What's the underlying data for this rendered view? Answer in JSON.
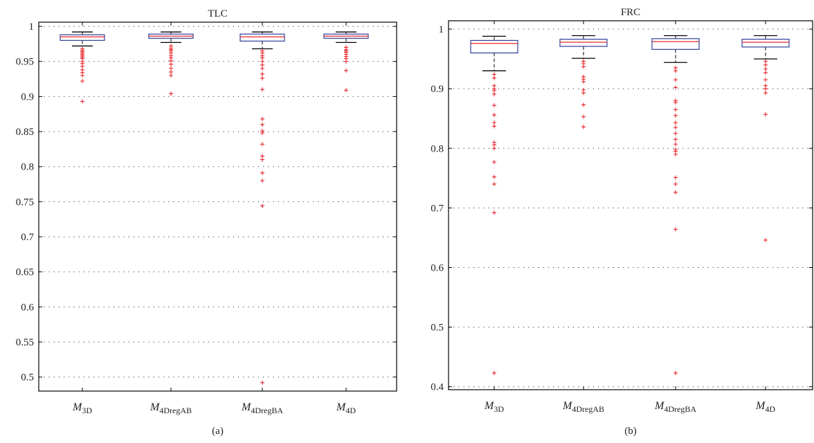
{
  "chart_data": [
    {
      "type": "boxplot",
      "title": "TLC",
      "panel_label": "(a)",
      "categories": [
        {
          "base": "M",
          "sub": "3D"
        },
        {
          "base": "M",
          "sub": "4DregAB"
        },
        {
          "base": "M",
          "sub": "4DregBA"
        },
        {
          "base": "M",
          "sub": "4D"
        }
      ],
      "ylim": [
        0.48,
        1.006
      ],
      "yticks": [
        "0.5",
        "0.55",
        "0.6",
        "0.65",
        "0.7",
        "0.75",
        "0.8",
        "0.85",
        "0.9",
        "0.95",
        "1"
      ],
      "grid": true,
      "boxes": [
        {
          "q1": 0.98,
          "median": 0.985,
          "q3": 0.988,
          "whisker_low": 0.972,
          "whisker_high": 0.992,
          "outliers": [
            0.968,
            0.966,
            0.964,
            0.962,
            0.96,
            0.958,
            0.956,
            0.954,
            0.95,
            0.947,
            0.943,
            0.938,
            0.934,
            0.93,
            0.922,
            0.893
          ]
        },
        {
          "q1": 0.983,
          "median": 0.986,
          "q3": 0.989,
          "whisker_low": 0.977,
          "whisker_high": 0.992,
          "outliers": [
            0.972,
            0.969,
            0.967,
            0.965,
            0.962,
            0.958,
            0.955,
            0.951,
            0.946,
            0.94,
            0.935,
            0.93,
            0.904
          ]
        },
        {
          "q1": 0.979,
          "median": 0.985,
          "q3": 0.989,
          "whisker_low": 0.968,
          "whisker_high": 0.992,
          "outliers": [
            0.965,
            0.962,
            0.958,
            0.955,
            0.95,
            0.945,
            0.94,
            0.932,
            0.926,
            0.91,
            0.868,
            0.86,
            0.851,
            0.848,
            0.832,
            0.815,
            0.81,
            0.791,
            0.78,
            0.744,
            0.492
          ]
        },
        {
          "q1": 0.983,
          "median": 0.986,
          "q3": 0.989,
          "whisker_low": 0.977,
          "whisker_high": 0.992,
          "outliers": [
            0.97,
            0.967,
            0.965,
            0.963,
            0.96,
            0.957,
            0.954,
            0.95,
            0.937,
            0.909
          ]
        }
      ]
    },
    {
      "type": "boxplot",
      "title": "FRC",
      "panel_label": "(b)",
      "categories": [
        {
          "base": "M",
          "sub": "3D"
        },
        {
          "base": "M",
          "sub": "4DregAB"
        },
        {
          "base": "M",
          "sub": "4DregBA"
        },
        {
          "base": "M",
          "sub": "4D"
        }
      ],
      "ylim": [
        0.395,
        1.014
      ],
      "yticks": [
        "0.4",
        "0.5",
        "0.6",
        "0.7",
        "0.8",
        "0.9",
        "1"
      ],
      "grid": true,
      "boxes": [
        {
          "q1": 0.96,
          "median": 0.976,
          "q3": 0.981,
          "whisker_low": 0.93,
          "whisker_high": 0.988,
          "outliers": [
            0.924,
            0.918,
            0.905,
            0.9,
            0.897,
            0.891,
            0.872,
            0.856,
            0.843,
            0.837,
            0.81,
            0.806,
            0.8,
            0.777,
            0.752,
            0.74,
            0.692,
            0.423
          ]
        },
        {
          "q1": 0.971,
          "median": 0.978,
          "q3": 0.983,
          "whisker_low": 0.951,
          "whisker_high": 0.989,
          "outliers": [
            0.946,
            0.942,
            0.937,
            0.92,
            0.916,
            0.912,
            0.898,
            0.893,
            0.873,
            0.853,
            0.836
          ]
        },
        {
          "q1": 0.966,
          "median": 0.979,
          "q3": 0.984,
          "whisker_low": 0.944,
          "whisker_high": 0.989,
          "outliers": [
            0.935,
            0.93,
            0.915,
            0.902,
            0.88,
            0.877,
            0.865,
            0.855,
            0.843,
            0.835,
            0.825,
            0.815,
            0.807,
            0.798,
            0.795,
            0.79,
            0.751,
            0.74,
            0.726,
            0.664,
            0.423
          ]
        },
        {
          "q1": 0.97,
          "median": 0.978,
          "q3": 0.983,
          "whisker_low": 0.95,
          "whisker_high": 0.989,
          "outliers": [
            0.946,
            0.94,
            0.933,
            0.927,
            0.915,
            0.905,
            0.9,
            0.893,
            0.857,
            0.646
          ]
        }
      ]
    }
  ],
  "colors": {
    "box": "#2b3f99",
    "median": "#e8262b",
    "outlier": "#e8262b",
    "whisker": "#000000",
    "grid": "#333333",
    "axis": "#000000"
  }
}
